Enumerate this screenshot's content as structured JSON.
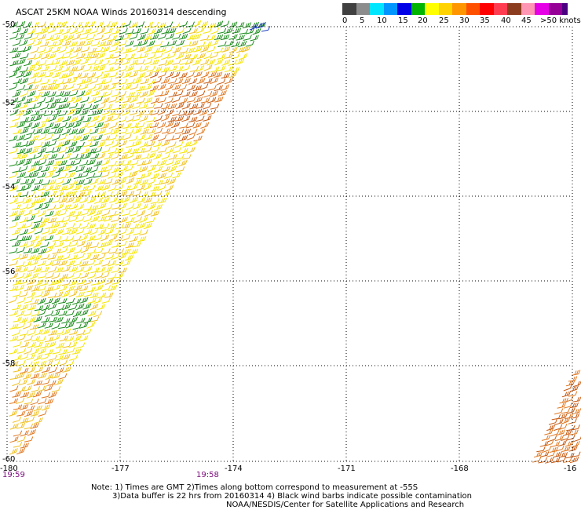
{
  "title": "ASCAT 25KM NOAA Winds 20160314 descending",
  "legend": {
    "colors": [
      "#404040",
      "#8c8c8c",
      "#00e6ff",
      "#0096ff",
      "#0000e6",
      "#00b400",
      "#ffff00",
      "#ffd200",
      "#ff9600",
      "#ff5000",
      "#ff0000",
      "#ff3c50",
      "#8c3c1e",
      "#ff96b4",
      "#e600e6",
      "#960096",
      "#4b0082"
    ],
    "labels": [
      "0",
      "5",
      "10",
      "15",
      "20",
      "25",
      "30",
      "35",
      "40",
      "45",
      ">50 knots"
    ]
  },
  "axes": {
    "x_labels": [
      "-180",
      "-177",
      "-174",
      "-171",
      "-168",
      "-16"
    ],
    "y_labels": [
      "-50",
      "-52",
      "-54",
      "-56",
      "-58",
      "-60"
    ],
    "grid": "dotted"
  },
  "times": [
    "19:59",
    "19:58"
  ],
  "notes": [
    "Note: 1) Times are GMT 2)Times along bottom correspond to measurement at -55S",
    "3)Data buffer is 22 hrs from 20160314 4) Black wind barbs indicate possible contamination",
    "NOAA/NESDIS/Center for Satellite Applications and Research"
  ],
  "barb_colors": {
    "green": "#1a8c1a",
    "yellow": "#f5e400",
    "gold": "#f0c020",
    "orange": "#e07820",
    "dark_orange": "#c85a10",
    "blue": "#2040c0"
  }
}
